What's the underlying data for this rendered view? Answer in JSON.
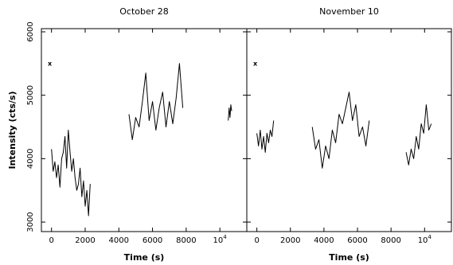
{
  "chart_data": [
    {
      "type": "line",
      "title": "October 28",
      "xlabel": "Time (s)",
      "ylabel": "Intensity (cts/s)",
      "xlim": [
        -600,
        11600
      ],
      "ylim": [
        2850,
        6050
      ],
      "xticks": [
        0,
        2000,
        4000,
        6000,
        8000,
        10000
      ],
      "xtick_labels": [
        "0",
        "2000",
        "4000",
        "6000",
        "8000",
        "10^4"
      ],
      "yticks": [
        3000,
        4000,
        5000,
        6000
      ],
      "ytick_labels": [
        "3000",
        "4000",
        "5000",
        "6000"
      ],
      "marker": {
        "x": -100,
        "y": 5500,
        "text": "x"
      },
      "segments": [
        {
          "x": [
            0,
            100,
            200,
            300,
            400,
            500,
            600,
            700,
            800,
            900,
            1000,
            1100,
            1200,
            1300,
            1400,
            1500,
            1600,
            1700,
            1800,
            1900,
            2000,
            2100,
            2200,
            2300
          ],
          "y": [
            4150,
            3800,
            3950,
            3700,
            3900,
            3550,
            4000,
            4100,
            4350,
            3850,
            4450,
            4100,
            3800,
            4000,
            3700,
            3500,
            3600,
            3850,
            3400,
            3650,
            3250,
            3500,
            3100,
            3600
          ]
        },
        {
          "x": [
            4600,
            4800,
            5000,
            5200,
            5400,
            5600,
            5800,
            6000,
            6200,
            6400,
            6600,
            6800,
            7000,
            7200,
            7400,
            7600,
            7800
          ],
          "y": [
            4700,
            4300,
            4650,
            4500,
            4900,
            5350,
            4600,
            4900,
            4450,
            4800,
            5050,
            4500,
            4900,
            4550,
            4950,
            5500,
            4800
          ]
        },
        {
          "x": [
            10500,
            10550,
            10600,
            10650,
            10700
          ],
          "y": [
            4600,
            4800,
            4650,
            4850,
            4750
          ]
        }
      ]
    },
    {
      "type": "line",
      "title": "November 10",
      "xlabel": "Time (s)",
      "ylabel": "",
      "xlim": [
        -600,
        11600
      ],
      "ylim": [
        2850,
        6050
      ],
      "xticks": [
        0,
        2000,
        4000,
        6000,
        8000,
        10000
      ],
      "xtick_labels": [
        "0",
        "2000",
        "4000",
        "6000",
        "8000",
        "10^4"
      ],
      "yticks": [
        3000,
        4000,
        5000,
        6000
      ],
      "ytick_labels": [
        "",
        "",
        "",
        ""
      ],
      "marker": {
        "x": -100,
        "y": 5500,
        "text": "x"
      },
      "segments": [
        {
          "x": [
            0,
            100,
            200,
            300,
            400,
            500,
            600,
            700,
            800,
            900,
            1000
          ],
          "y": [
            4400,
            4200,
            4450,
            4150,
            4350,
            4100,
            4400,
            4250,
            4450,
            4350,
            4600
          ]
        },
        {
          "x": [
            3300,
            3500,
            3700,
            3900,
            4100,
            4300,
            4500,
            4700,
            4900,
            5100,
            5300,
            5500,
            5700,
            5900,
            6100,
            6300,
            6500,
            6700
          ],
          "y": [
            4500,
            4150,
            4300,
            3850,
            4200,
            4000,
            4450,
            4250,
            4700,
            4550,
            4800,
            5050,
            4600,
            4850,
            4350,
            4500,
            4200,
            4600
          ]
        },
        {
          "x": [
            8900,
            9050,
            9200,
            9350,
            9500,
            9650,
            9800,
            9950,
            10100,
            10250,
            10400
          ],
          "y": [
            4100,
            3900,
            4150,
            4000,
            4350,
            4150,
            4550,
            4400,
            4850,
            4450,
            4550
          ]
        }
      ]
    }
  ]
}
